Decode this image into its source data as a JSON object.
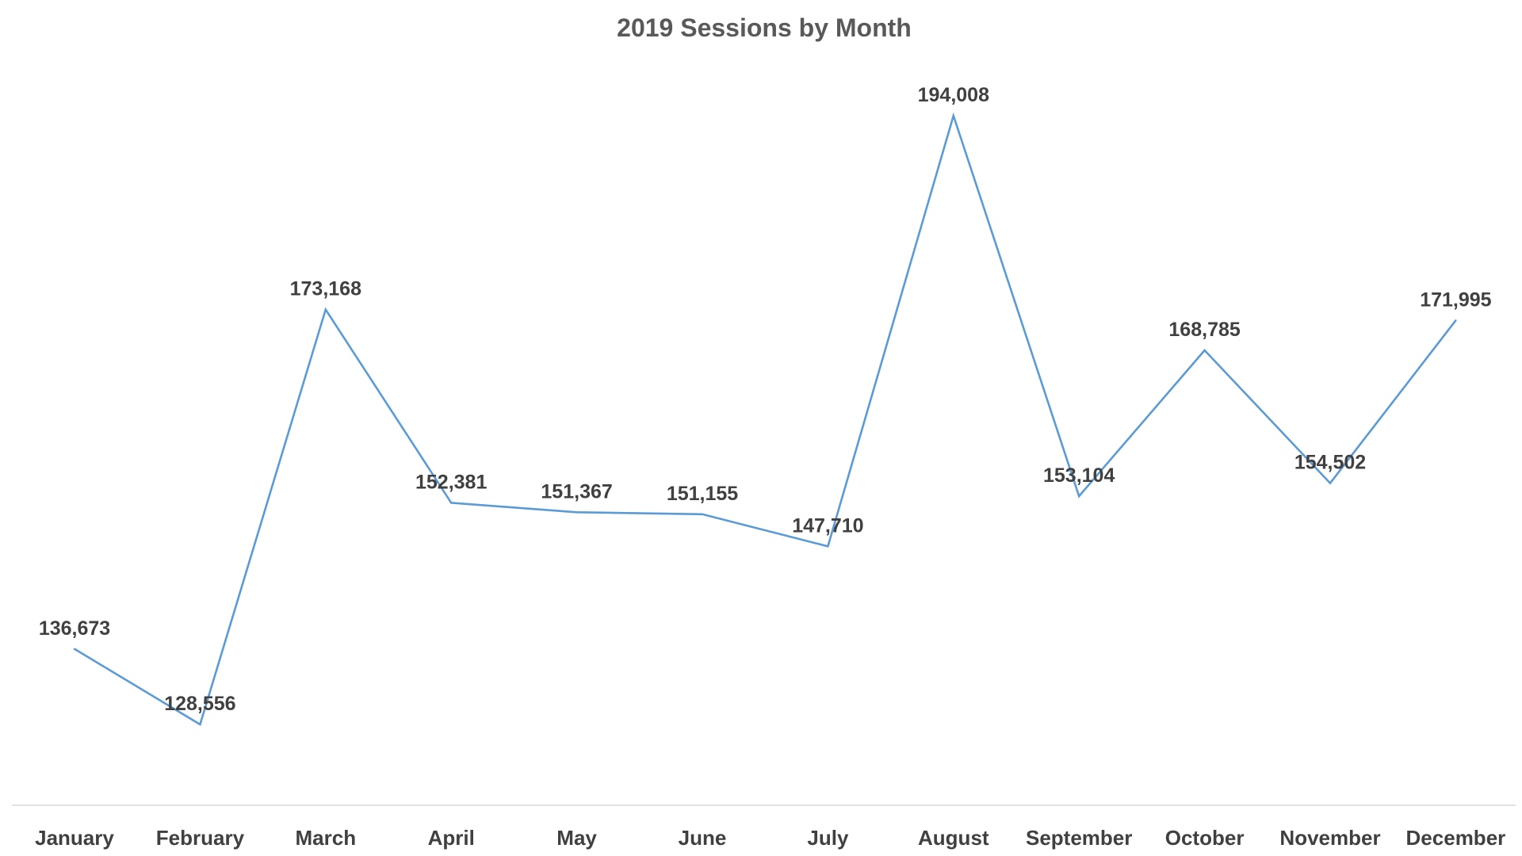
{
  "chart_data": {
    "type": "line",
    "title": "2019 Sessions by Month",
    "xlabel": "",
    "ylabel": "",
    "categories": [
      "January",
      "February",
      "March",
      "April",
      "May",
      "June",
      "July",
      "August",
      "September",
      "October",
      "November",
      "December"
    ],
    "series": [
      {
        "values": [
          136673,
          128556,
          173168,
          152381,
          151367,
          151155,
          147710,
          194008,
          153104,
          168785,
          154502,
          171995
        ],
        "labels": [
          "136,673",
          "128,556",
          "173,168",
          "152,381",
          "151,367",
          "151,155",
          "147,710",
          "194,008",
          "153,104",
          "168,785",
          "154,502",
          "171,995"
        ],
        "color": "#5b9bd5"
      }
    ],
    "ylim": [
      120000,
      200000
    ],
    "grid": false,
    "legend": "none",
    "axis_color": "#d9d9d9",
    "text_color": "#404040",
    "title_color": "#595959"
  }
}
